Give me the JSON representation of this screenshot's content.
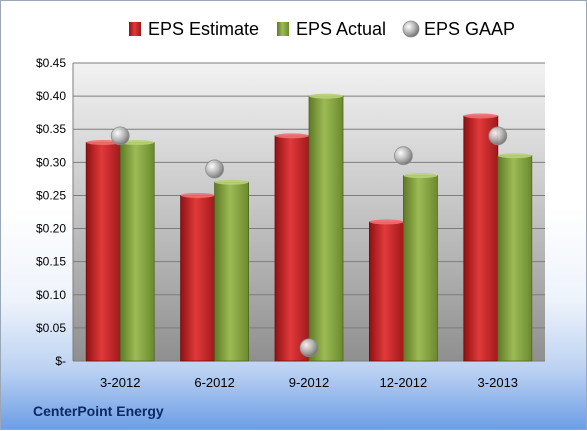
{
  "footer_text": "CenterPoint Energy",
  "colors": {
    "estimate": "#d0282a",
    "actual": "#8cab43",
    "gaap": "#b8b8b8"
  },
  "chart_data": {
    "type": "bar",
    "categories": [
      "3-2012",
      "6-2012",
      "9-2012",
      "12-2012",
      "3-2013"
    ],
    "series": [
      {
        "name": "EPS Estimate",
        "type": "bar",
        "values": [
          0.33,
          0.25,
          0.34,
          0.21,
          0.37
        ]
      },
      {
        "name": "EPS Actual",
        "type": "bar",
        "values": [
          0.33,
          0.27,
          0.4,
          0.28,
          0.31
        ]
      },
      {
        "name": "EPS GAAP",
        "type": "scatter",
        "values": [
          0.34,
          0.29,
          0.02,
          0.31,
          0.34
        ]
      }
    ],
    "ylim": [
      0,
      0.45
    ],
    "yticks": [
      0,
      0.05,
      0.1,
      0.15,
      0.2,
      0.25,
      0.3,
      0.35,
      0.4,
      0.45
    ],
    "ytick_labels": [
      "$-",
      "$0.05",
      "$0.10",
      "$0.15",
      "$0.20",
      "$0.25",
      "$0.30",
      "$0.35",
      "$0.40",
      "$0.45"
    ],
    "title": "",
    "xlabel": "",
    "ylabel": "",
    "grid": true,
    "legend": "top"
  }
}
